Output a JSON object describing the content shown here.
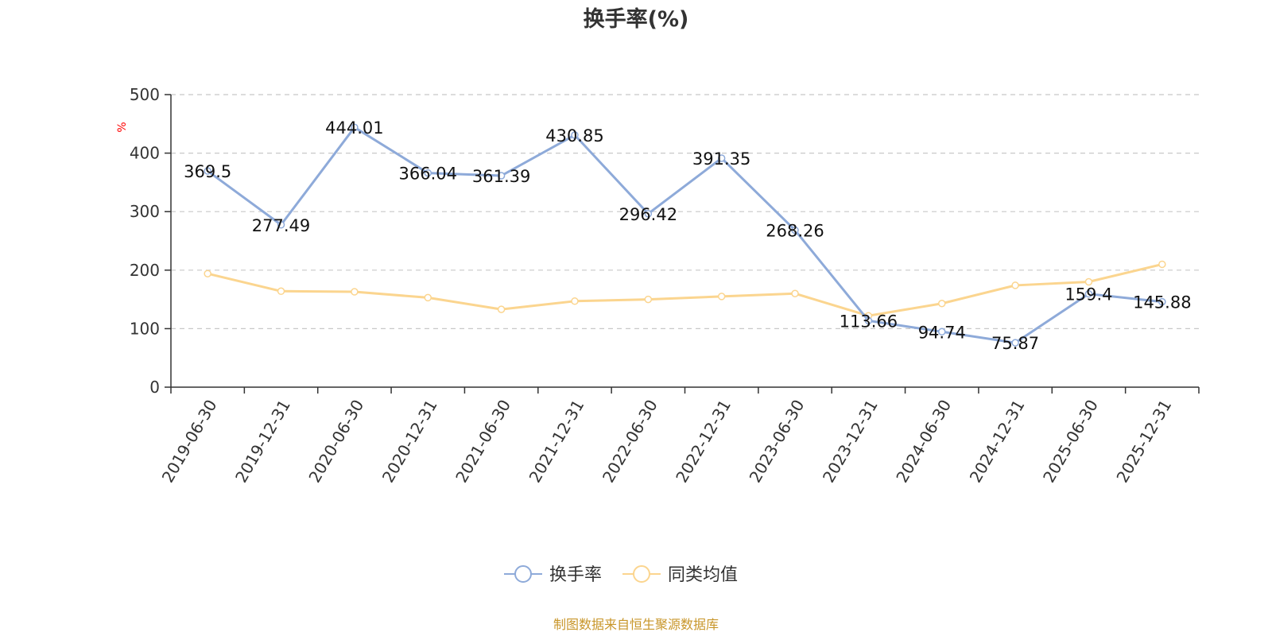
{
  "chart_data": {
    "type": "line",
    "title": "换手率(%)",
    "ylabel": "%",
    "xlabel": "",
    "ylim": [
      0,
      500
    ],
    "yticks": [
      0,
      100,
      200,
      300,
      400,
      500
    ],
    "grid": true,
    "legend_position": "bottom",
    "categories": [
      "2019-06-30",
      "2019-12-31",
      "2020-06-30",
      "2020-12-31",
      "2021-06-30",
      "2021-12-31",
      "2022-06-30",
      "2022-12-31",
      "2023-06-30",
      "2023-12-31",
      "2024-06-30",
      "2024-12-31",
      "2025-06-30",
      "2025-12-31"
    ],
    "series": [
      {
        "name": "换手率",
        "color": "#8eaad9",
        "values": [
          369.5,
          277.49,
          444.01,
          366.04,
          361.39,
          430.85,
          296.42,
          391.35,
          268.26,
          113.66,
          94.74,
          75.87,
          159.4,
          145.88
        ],
        "labels": [
          "369.5",
          "277.49",
          "444.01",
          "366.04",
          "361.39",
          "430.85",
          "296.42",
          "391.35",
          "268.26",
          "113.66",
          "94.74",
          "75.87",
          "159.4",
          "145.88"
        ]
      },
      {
        "name": "同类均值",
        "color": "#fbd58f",
        "values": [
          194,
          164,
          163,
          153,
          133,
          147,
          150,
          155,
          160,
          122,
          143,
          174,
          180,
          210
        ]
      }
    ]
  },
  "source": "制图数据来自恒生聚源数据库"
}
